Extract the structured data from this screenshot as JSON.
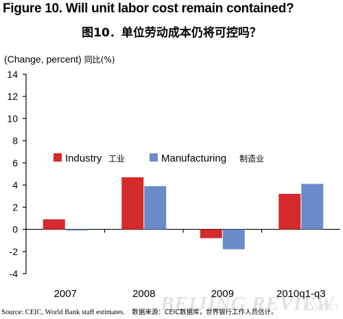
{
  "title_en": "Figure 10. Will unit labor cost remain contained?",
  "title_zh": "图10．单位劳动成本仍将可控吗？",
  "unit_label": "(Change, percent)",
  "unit_label_zh": "同比(%)",
  "source_text": "Source: CEIC, World Bank staff estimates.",
  "source_text_zh": "数据来源：CEIC数据库，世界银行工作人员估计。",
  "watermark_text": "BEIJING REVIEW.com.cn",
  "colors": {
    "industry": "#d42a2a",
    "manufacturing": "#6a8ac8"
  },
  "chart_data": {
    "type": "bar",
    "title": "Figure 10. Will unit labor cost remain contained?",
    "ylabel": "(Change, percent)",
    "categories": [
      "2007",
      "2008",
      "2009",
      "2010q1-q3"
    ],
    "series": [
      {
        "name": "Industry",
        "name_zh": "工业",
        "values": [
          0.9,
          4.7,
          -0.8,
          3.2
        ]
      },
      {
        "name": "Manufacturing",
        "name_zh": "制造业",
        "values": [
          -0.1,
          3.9,
          -1.8,
          4.1
        ]
      }
    ],
    "ylim": [
      -4,
      14
    ],
    "yticks": [
      -4,
      -2,
      0,
      2,
      4,
      6,
      8,
      10,
      12,
      14
    ],
    "grid": false,
    "legend": "upper-left"
  }
}
